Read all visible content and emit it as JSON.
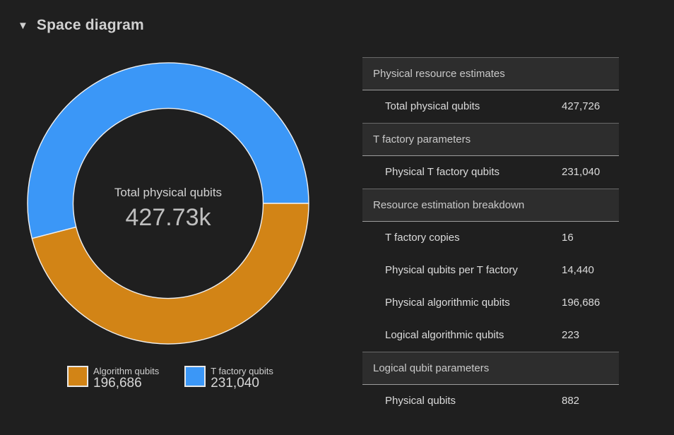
{
  "header": {
    "collapse_icon": "▼",
    "title": "Space diagram"
  },
  "chart_data": {
    "type": "pie",
    "subtype": "donut",
    "title": "Space diagram",
    "center_label": "Total physical qubits",
    "center_value": "427.73k",
    "total": 427726,
    "series": [
      {
        "name": "T factory qubits",
        "value": 231040,
        "display_value": "231,040",
        "color": "#3b97f7"
      },
      {
        "name": "Algorithm qubits",
        "value": 196686,
        "display_value": "196,686",
        "color": "#d28416"
      }
    ],
    "legend": [
      {
        "label": "Algorithm qubits",
        "value": "196,686",
        "color": "#d28416"
      },
      {
        "label": "T factory qubits",
        "value": "231,040",
        "color": "#3b97f7"
      }
    ],
    "layout_hints": {
      "start_angle_deg": 0,
      "direction": "counterclockwise",
      "stroke_color": "#f0f0f0",
      "legend_position": "bottom-left"
    }
  },
  "table": {
    "sections": [
      {
        "header": "Physical resource estimates",
        "rows": [
          {
            "label": "Total physical qubits",
            "value": "427,726"
          }
        ]
      },
      {
        "header": "T factory parameters",
        "rows": [
          {
            "label": "Physical T factory qubits",
            "value": "231,040"
          }
        ]
      },
      {
        "header": "Resource estimation breakdown",
        "rows": [
          {
            "label": "T factory copies",
            "value": "16"
          },
          {
            "label": "Physical qubits per T factory",
            "value": "14,440"
          },
          {
            "label": "Physical algorithmic qubits",
            "value": "196,686"
          },
          {
            "label": "Logical algorithmic qubits",
            "value": "223"
          }
        ]
      },
      {
        "header": "Logical qubit parameters",
        "rows": [
          {
            "label": "Physical qubits",
            "value": "882"
          }
        ]
      }
    ]
  },
  "colors": {
    "background": "#1f1f1f",
    "table_header_bg": "#2d2d2d",
    "accent_blue": "#3b97f7",
    "accent_orange": "#d28416"
  }
}
